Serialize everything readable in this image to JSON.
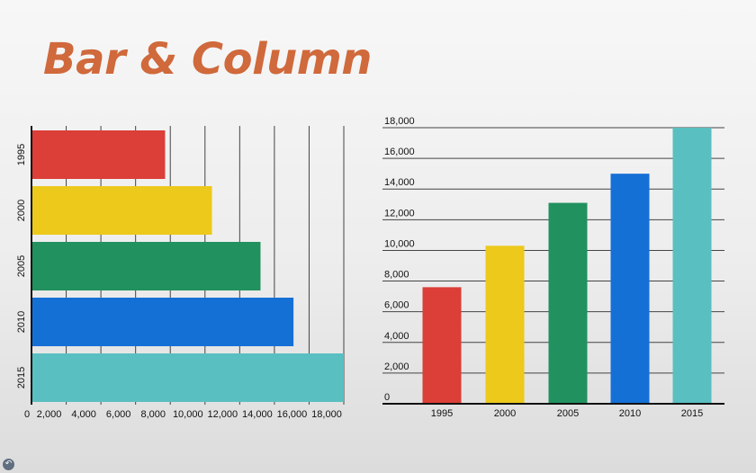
{
  "slide": {
    "title": "Bar & Column",
    "nav_glyph": "↶"
  },
  "colors": {
    "bars": [
      "#db3f37",
      "#ecc91b",
      "#21915f",
      "#1570d6",
      "#5abfc1"
    ],
    "grid": "#444444",
    "axis": "#111111",
    "title": "#d0693b"
  },
  "chart_data": [
    {
      "type": "bar",
      "orientation": "horizontal",
      "title": "",
      "xlabel": "",
      "ylabel": "",
      "categories": [
        "1995",
        "2000",
        "2005",
        "2010",
        "2015"
      ],
      "values": [
        7700,
        10400,
        13200,
        15100,
        18000
      ],
      "xlim": [
        0,
        18000
      ],
      "x_ticks": [
        "0",
        "2,000",
        "4,000",
        "6,000",
        "8,000",
        "10,000",
        "12,000",
        "14,000",
        "16,000",
        "18,000"
      ],
      "grid": "vertical",
      "legend": "none"
    },
    {
      "type": "bar",
      "orientation": "vertical",
      "title": "",
      "xlabel": "",
      "ylabel": "",
      "categories": [
        "1995",
        "2000",
        "2005",
        "2010",
        "2015"
      ],
      "values": [
        7600,
        10300,
        13100,
        15000,
        18000
      ],
      "ylim": [
        0,
        18000
      ],
      "y_ticks": [
        "0",
        "2,000",
        "4,000",
        "6,000",
        "8,000",
        "10,000",
        "12,000",
        "14,000",
        "16,000",
        "18,000"
      ],
      "grid": "horizontal",
      "legend": "none"
    }
  ]
}
